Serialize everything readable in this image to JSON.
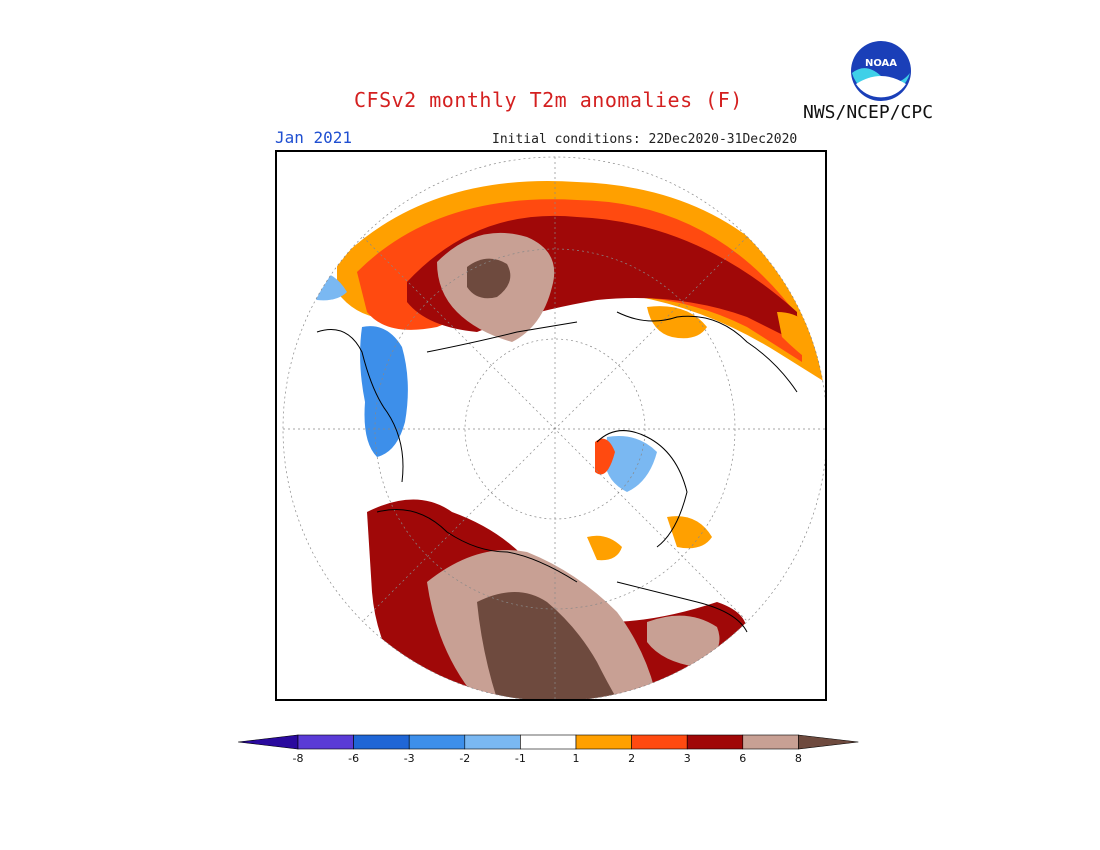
{
  "header": {
    "title": "CFSv2 monthly T2m anomalies (F)",
    "month": "Jan 2021",
    "initial_conditions": "Initial conditions: 22Dec2020-31Dec2020",
    "agency": "NWS/NCEP/CPC",
    "logo_text": "NOAA"
  },
  "colorbar": {
    "labels": [
      "-8",
      "-6",
      "-3",
      "-2",
      "-1",
      "1",
      "2",
      "3",
      "6",
      "8"
    ],
    "colors": [
      "#2a0a9e",
      "#5a3bd6",
      "#1f66d6",
      "#3d8fea",
      "#7ab8f2",
      "#ffffff",
      "#ffa000",
      "#ff4a10",
      "#a00808",
      "#c8a094",
      "#6e4a3e"
    ]
  },
  "map": {
    "projection": "polar-stereographic",
    "colors": {
      "brown": "#6e4a3e",
      "tan": "#c8a094",
      "darkred": "#a00808",
      "red": "#ff4a10",
      "orange": "#ffa000",
      "blue": "#3d8fea",
      "lightblue": "#7ab8f2"
    }
  }
}
